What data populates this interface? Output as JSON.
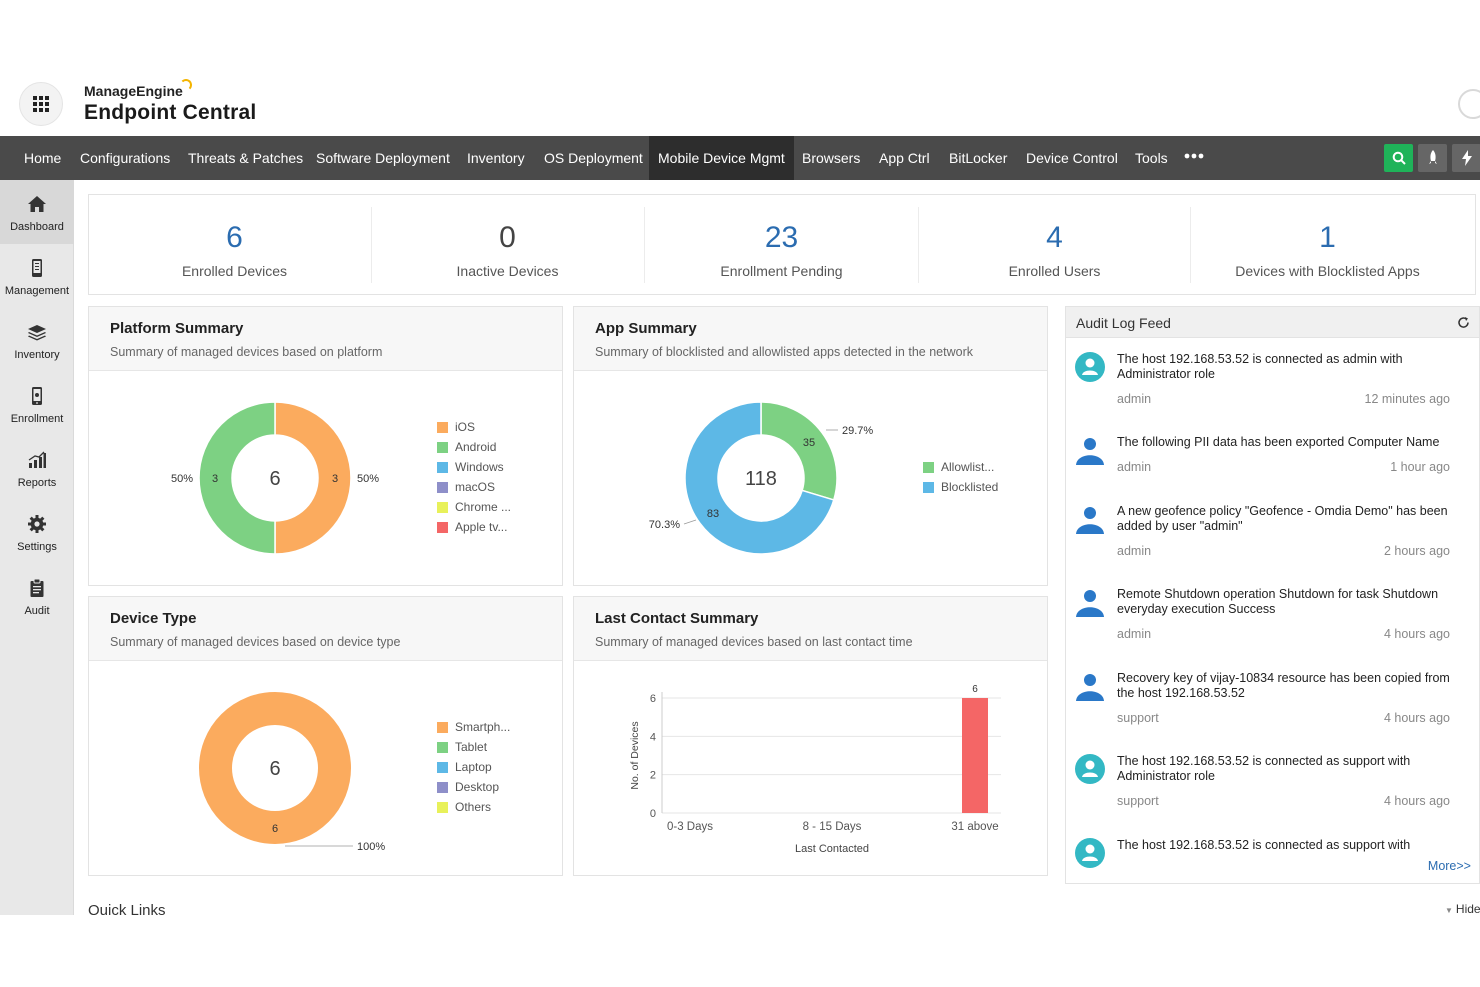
{
  "brand": {
    "company": "ManageEngine",
    "product": "Endpoint Central"
  },
  "nav": {
    "items": [
      "Home",
      "Configurations",
      "Threats & Patches",
      "Software Deployment",
      "Inventory",
      "OS Deployment",
      "Mobile Device Mgmt",
      "Browsers",
      "App Ctrl",
      "BitLocker",
      "Device Control",
      "Tools"
    ],
    "active": "Mobile Device Mgmt",
    "more_icon": "more-horizontal-icon",
    "search_color": "#1fb359"
  },
  "sidebar": {
    "items": [
      "Dashboard",
      "Management",
      "Inventory",
      "Enrollment",
      "Reports",
      "Settings",
      "Audit"
    ],
    "active": "Dashboard"
  },
  "stats": [
    {
      "value": "6",
      "label": "Enrolled Devices"
    },
    {
      "value": "0",
      "label": "Inactive Devices"
    },
    {
      "value": "23",
      "label": "Enrollment Pending"
    },
    {
      "value": "4",
      "label": "Enrolled Users"
    },
    {
      "value": "1",
      "label": "Devices with Blocklisted Apps"
    }
  ],
  "panels": {
    "platform": {
      "title": "Platform Summary",
      "subtitle": "Summary of managed devices based on platform"
    },
    "app": {
      "title": "App Summary",
      "subtitle": "Summary of blocklisted and allowlisted apps detected in the network"
    },
    "device_type": {
      "title": "Device Type",
      "subtitle": "Summary of managed devices based on device type"
    },
    "last_contact": {
      "title": "Last Contact Summary",
      "subtitle": "Summary of managed devices based on last contact time"
    }
  },
  "colors": {
    "orange": "#fbab5e",
    "green": "#7dd183",
    "blue": "#5db8e6",
    "purple": "#8e8fc9",
    "yellow": "#e8f15a",
    "red": "#f46666",
    "link": "#2b6cb0"
  },
  "chart_data": [
    {
      "type": "pie",
      "center_label": "6",
      "categories": [
        "iOS",
        "Android",
        "Windows",
        "macOS",
        "Chrome ...",
        "Apple tv..."
      ],
      "values": [
        3,
        3,
        0,
        0,
        0,
        0
      ],
      "percent_labels": [
        "50%",
        "50%"
      ]
    },
    {
      "type": "pie",
      "center_label": "118",
      "categories": [
        "Allowlist...",
        "Blocklisted"
      ],
      "values": [
        35,
        83
      ],
      "percent_labels": [
        "29.7%",
        "70.3%"
      ]
    },
    {
      "type": "pie",
      "center_label": "6",
      "categories": [
        "Smartph...",
        "Tablet",
        "Laptop",
        "Desktop",
        "Others"
      ],
      "values": [
        6,
        0,
        0,
        0,
        0
      ],
      "percent_labels": [
        "100%"
      ]
    },
    {
      "type": "bar",
      "categories": [
        "0-3 Days",
        "8 - 15 Days",
        "31 above"
      ],
      "values": [
        0,
        0,
        6
      ],
      "xlabel": "Last Contacted",
      "ylabel": "No. of Devices",
      "ylim": [
        0,
        6
      ],
      "yticks": [
        "0",
        "2",
        "4",
        "6"
      ]
    }
  ],
  "audit": {
    "title": "Audit Log Feed",
    "entries": [
      {
        "message": "The host 192.168.53.52 is connected as admin with Administrator role",
        "user": "admin",
        "time": "12 minutes ago",
        "icon": "connection-user-icon"
      },
      {
        "message": "The following PII data has been exported Computer Name",
        "user": "admin",
        "time": "1 hour ago",
        "icon": "user-icon"
      },
      {
        "message": "A new geofence policy \"Geofence - Omdia Demo\" has been added by user \"admin\"",
        "user": "admin",
        "time": "2 hours ago",
        "icon": "user-icon"
      },
      {
        "message": "Remote Shutdown operation Shutdown for task Shutdown everyday execution Success",
        "user": "admin",
        "time": "4 hours ago",
        "icon": "user-icon"
      },
      {
        "message": "Recovery key of vijay-10834 resource has been copied from the host 192.168.53.52",
        "user": "support",
        "time": "4 hours ago",
        "icon": "user-icon"
      },
      {
        "message": "The host 192.168.53.52 is connected as support with Administrator role",
        "user": "support",
        "time": "4 hours ago",
        "icon": "connection-user-icon"
      },
      {
        "message": "The host 192.168.53.52 is connected as support with",
        "user": "",
        "time": "",
        "icon": "connection-user-icon"
      }
    ],
    "more": "More>>"
  },
  "quick_links": {
    "title": "Quick Links",
    "hide": "Hide"
  }
}
